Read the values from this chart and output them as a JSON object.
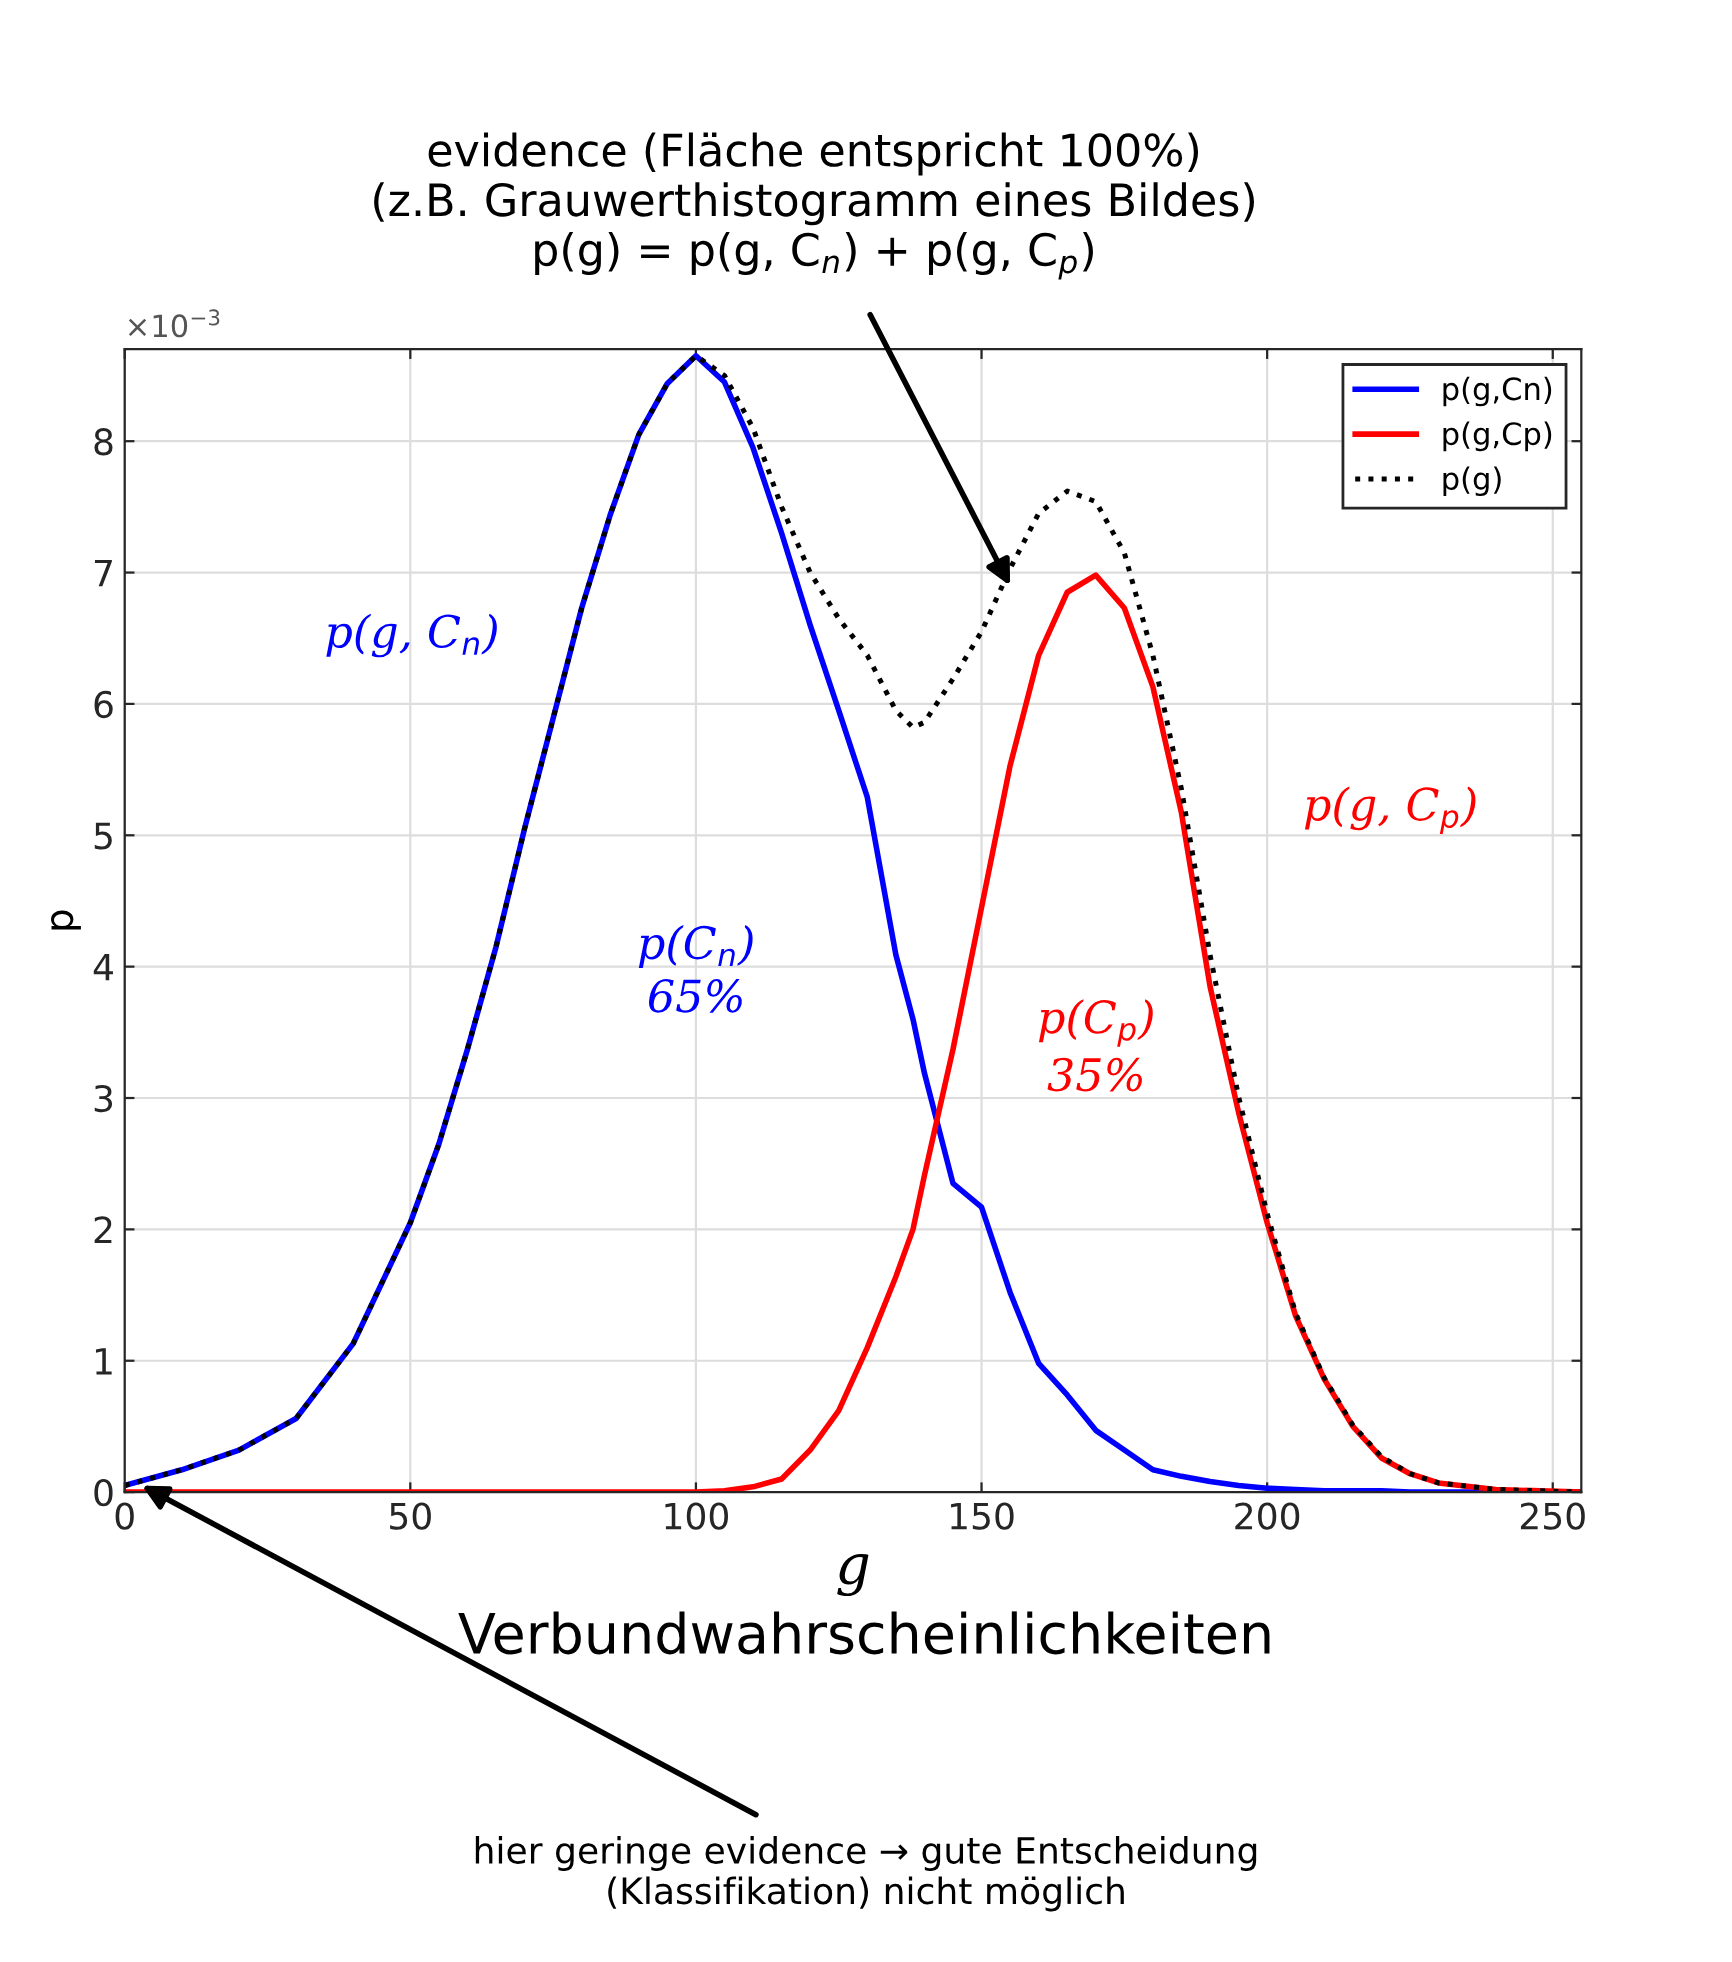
{
  "chart_data": {
    "type": "line",
    "xlabel": "g",
    "ylabel": "p",
    "x": [
      0,
      10,
      20,
      30,
      40,
      50,
      55,
      60,
      65,
      70,
      75,
      80,
      85,
      90,
      95,
      100,
      105,
      110,
      115,
      120,
      125,
      130,
      135,
      138,
      140,
      145,
      150,
      155,
      160,
      165,
      170,
      175,
      180,
      185,
      190,
      195,
      200,
      205,
      210,
      215,
      220,
      225,
      230,
      240,
      255
    ],
    "series": [
      {
        "name": "p(g,Cn)",
        "color": "#0000ff",
        "line_style": "solid",
        "values": [
          0.05,
          0.17,
          0.32,
          0.56,
          1.13,
          2.05,
          2.65,
          3.37,
          4.15,
          5.05,
          5.89,
          6.73,
          7.44,
          8.05,
          8.44,
          8.65,
          8.45,
          7.95,
          7.3,
          6.6,
          5.95,
          5.29,
          4.09,
          3.6,
          3.19,
          2.35,
          2.17,
          1.52,
          0.98,
          0.74,
          0.47,
          0.32,
          0.17,
          0.12,
          0.08,
          0.05,
          0.03,
          0.02,
          0.01,
          0.01,
          0.01,
          0,
          0,
          0,
          0
        ]
      },
      {
        "name": "p(g,Cp)",
        "color": "#ff0000",
        "line_style": "solid",
        "values": [
          0,
          0,
          0,
          0,
          0,
          0,
          0,
          0,
          0,
          0,
          0,
          0,
          0,
          0,
          0,
          0,
          0.01,
          0.04,
          0.1,
          0.32,
          0.62,
          1.1,
          1.64,
          2.0,
          2.41,
          3.37,
          4.45,
          5.53,
          6.37,
          6.85,
          6.98,
          6.73,
          6.13,
          5.17,
          3.85,
          2.89,
          2.05,
          1.34,
          0.86,
          0.5,
          0.26,
          0.14,
          0.07,
          0.02,
          0
        ]
      },
      {
        "name": "p(g)",
        "color": "#000000",
        "line_style": "dotted",
        "values": [
          0.05,
          0.17,
          0.32,
          0.56,
          1.13,
          2.05,
          2.65,
          3.37,
          4.15,
          5.05,
          5.89,
          6.73,
          7.44,
          8.05,
          8.44,
          8.65,
          8.5,
          8.1,
          7.5,
          7.0,
          6.65,
          6.37,
          5.95,
          5.82,
          5.86,
          6.19,
          6.55,
          7.03,
          7.45,
          7.62,
          7.54,
          7.15,
          6.37,
          5.35,
          4.09,
          3.01,
          2.12,
          1.36,
          0.87,
          0.51,
          0.27,
          0.14,
          0.07,
          0.02,
          0
        ]
      }
    ],
    "xlim": [
      0,
      255
    ],
    "xticks": [
      0,
      50,
      100,
      150,
      200,
      250
    ],
    "ylim": [
      0,
      8.7
    ],
    "yticks": [
      0,
      1,
      2,
      3,
      4,
      5,
      6,
      7,
      8
    ],
    "grid": true,
    "legend": "top right",
    "marker": "none",
    "annotations": [
      {
        "text": "evidence (Fläche entspricht 100%)\n(z.B. Grauwerthistogramm eines Bildes)\np(g) = p(g, C$_{n}$) + p(g, C$_{p}$)",
        "x": 155,
        "y": 6.9
      },
      "p(g, C$_{n}$)",
      "p(C$_{n}$)\n65%",
      "p(g, C$_{p}$)",
      "p(C$_{p}$)\n35%",
      "Verbundwahrscheinlichkeiten",
      {
        "text": "hier geringe evidence → gute Entscheidung\n(Klassifikation) nicht möglich",
        "x": 3,
        "y": 0.05
      },
      "×10$^{−3}$"
    ]
  }
}
